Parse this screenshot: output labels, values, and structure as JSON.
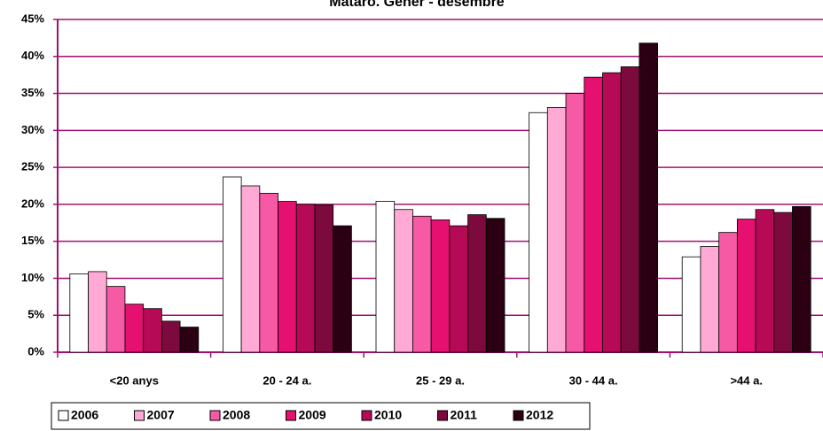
{
  "chart_data": {
    "type": "bar",
    "title": "Mataró. Gener - desembre",
    "categories": [
      "<20 anys",
      "20 - 24 a.",
      "25 - 29 a.",
      "30 - 44 a.",
      ">44 a."
    ],
    "series": [
      {
        "name": "2006",
        "color": "#ffffff",
        "values": [
          10.6,
          23.7,
          20.4,
          32.4,
          12.9
        ]
      },
      {
        "name": "2007",
        "color": "#ffaad4",
        "values": [
          10.9,
          22.5,
          19.3,
          33.1,
          14.3
        ]
      },
      {
        "name": "2008",
        "color": "#f75aa5",
        "values": [
          8.9,
          21.5,
          18.4,
          35.0,
          16.2
        ]
      },
      {
        "name": "2009",
        "color": "#e5106f",
        "values": [
          6.5,
          20.4,
          17.9,
          37.2,
          18.0
        ]
      },
      {
        "name": "2010",
        "color": "#b60a57",
        "values": [
          5.9,
          20.0,
          17.1,
          37.8,
          19.3
        ]
      },
      {
        "name": "2011",
        "color": "#7d0a3c",
        "values": [
          4.2,
          19.9,
          18.6,
          38.6,
          18.9
        ]
      },
      {
        "name": "2012",
        "color": "#2a0012",
        "values": [
          3.4,
          17.1,
          18.1,
          41.8,
          19.7
        ]
      }
    ],
    "ylim": [
      0,
      45
    ],
    "yticks": [
      {
        "value": 0,
        "label": "0%"
      },
      {
        "value": 5,
        "label": "5%"
      },
      {
        "value": 10,
        "label": "10%"
      },
      {
        "value": 15,
        "label": "15%"
      },
      {
        "value": 20,
        "label": "20%"
      },
      {
        "value": 25,
        "label": "25%"
      },
      {
        "value": 30,
        "label": "30%"
      },
      {
        "value": 35,
        "label": "35%"
      },
      {
        "value": 40,
        "label": "40%"
      },
      {
        "value": 45,
        "label": "45%"
      }
    ],
    "grid": true,
    "legend": "bottom"
  }
}
